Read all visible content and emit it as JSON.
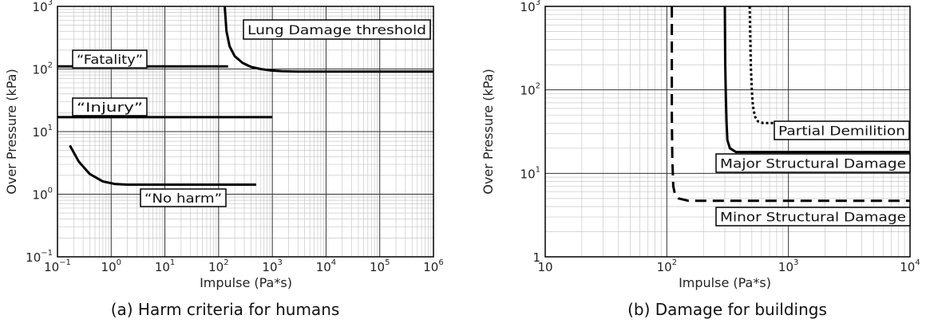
{
  "chart_data": [
    {
      "type": "line",
      "caption": "(a) Harm criteria for humans",
      "xlabel": "Impulse (Pa*s)",
      "ylabel": "Over Pressure (kPa)",
      "x_scale": "log",
      "y_scale": "log",
      "xlim": [
        0.1,
        1000000
      ],
      "ylim": [
        0.1,
        1000
      ],
      "grid": true,
      "x_ticks": [
        {
          "base": "10",
          "exp": "−1"
        },
        {
          "base": "10",
          "exp": "0"
        },
        {
          "base": "10",
          "exp": "1"
        },
        {
          "base": "10",
          "exp": "2"
        },
        {
          "base": "10",
          "exp": "3"
        },
        {
          "base": "10",
          "exp": "4"
        },
        {
          "base": "10",
          "exp": "5"
        },
        {
          "base": "10",
          "exp": "6"
        }
      ],
      "y_ticks": [
        {
          "base": "10",
          "exp": "−1"
        },
        {
          "base": "10",
          "exp": "0"
        },
        {
          "base": "10",
          "exp": "1"
        },
        {
          "base": "10",
          "exp": "2"
        },
        {
          "base": "10",
          "exp": "3"
        }
      ],
      "series": [
        {
          "name": "Lung Damage threshold",
          "style": "solid",
          "x": [
            130,
            140,
            160,
            200,
            280,
            400,
            600,
            900,
            1500,
            3000,
            1000000
          ],
          "y": [
            1000,
            400,
            230,
            160,
            125,
            108,
            100,
            95,
            92,
            91,
            91
          ]
        },
        {
          "name": "“Fatality”",
          "style": "solid",
          "x": [
            0.1,
            150
          ],
          "y": [
            110,
            110
          ]
        },
        {
          "name": "“Injury”",
          "style": "solid",
          "x": [
            0.1,
            1000
          ],
          "y": [
            17,
            17
          ]
        },
        {
          "name": "“No harm”",
          "style": "solid",
          "x": [
            0.17,
            0.25,
            0.4,
            0.7,
            1.2,
            2,
            5,
            500
          ],
          "y": [
            6,
            3.3,
            2.1,
            1.6,
            1.45,
            1.42,
            1.42,
            1.42
          ]
        }
      ],
      "annotations": [
        {
          "text": "Lung Damage threshold"
        },
        {
          "text": "“Fatality”"
        },
        {
          "text": "“Injury”"
        },
        {
          "text": "“No harm”"
        }
      ]
    },
    {
      "type": "line",
      "caption": "(b) Damage for buildings",
      "xlabel": "Impulse (Pa*s)",
      "ylabel": "Over Pressure (kPa)",
      "x_scale": "log",
      "y_scale": "log",
      "xlim": [
        10,
        10000
      ],
      "ylim": [
        1,
        1000
      ],
      "grid": true,
      "x_ticks": [
        {
          "base": "10",
          "exp": ""
        },
        {
          "base": "10",
          "exp": "2"
        },
        {
          "base": "10",
          "exp": "3"
        },
        {
          "base": "10",
          "exp": "4"
        }
      ],
      "y_ticks": [
        {
          "base": "1",
          "exp": ""
        },
        {
          "base": "10",
          "exp": "1"
        },
        {
          "base": "10",
          "exp": "2"
        },
        {
          "base": "10",
          "exp": "3"
        }
      ],
      "series": [
        {
          "name": "Partial Demilition",
          "style": "dotted",
          "x": [
            480,
            490,
            500,
            510,
            530,
            560,
            620,
            10000
          ],
          "y": [
            1000,
            200,
            100,
            65,
            48,
            42,
            40,
            40
          ]
        },
        {
          "name": "Major Structural Damage",
          "style": "solid",
          "x": [
            300,
            302,
            306,
            310,
            315,
            330,
            370,
            10000
          ],
          "y": [
            1000,
            200,
            80,
            40,
            25,
            20,
            18,
            18
          ]
        },
        {
          "name": "Minor Structural Damage",
          "style": "dashed",
          "x": [
            110,
            110,
            111,
            113,
            117,
            125,
            150,
            10000
          ],
          "y": [
            1000,
            50,
            15,
            7,
            5.5,
            5,
            4.7,
            4.7
          ]
        }
      ],
      "annotations": [
        {
          "text": "Partial Demilition"
        },
        {
          "text": "Major Structural Damage"
        },
        {
          "text": "Minor Structural Damage"
        }
      ]
    }
  ]
}
